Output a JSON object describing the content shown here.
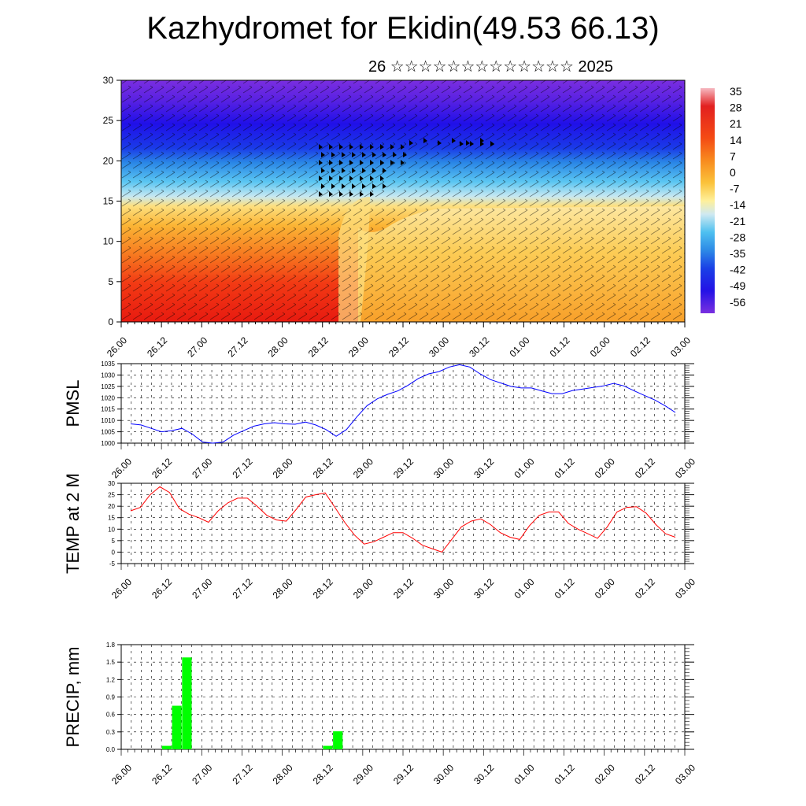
{
  "title": "Kazhydromet for Ekidin(49.53 66.13)",
  "subtitle": "26 ☆☆☆☆☆☆☆☆☆☆☆☆☆ 2025",
  "chart_data": [
    {
      "type": "heatmap",
      "ylim": [
        0,
        30
      ],
      "yticks": [
        "0",
        "5",
        "10",
        "15",
        "20",
        "25",
        "30"
      ],
      "xticks": [
        "26.00",
        "26.12",
        "27.00",
        "27.12",
        "28.00",
        "28.12",
        "29.00",
        "29.12",
        "30.00",
        "30.12",
        "01.00",
        "01.12",
        "02.00",
        "02.12",
        "03.00"
      ],
      "colorbar_labels": [
        "35",
        "28",
        "21",
        "14",
        "7",
        "0",
        "-7",
        "-14",
        "-21",
        "-28",
        "-35",
        "-42",
        "-49",
        "-56"
      ]
    },
    {
      "type": "line",
      "ylabel": "PMSL",
      "ylim": [
        1000,
        1035
      ],
      "yticks": [
        "1000",
        "1005",
        "1010",
        "1015",
        "1020",
        "1025",
        "1030",
        "1035"
      ],
      "xticks": [
        "26.00",
        "26.12",
        "27.00",
        "27.12",
        "28.00",
        "28.12",
        "29.00",
        "29.12",
        "30.00",
        "30.12",
        "01.00",
        "01.12",
        "02.00",
        "02.12",
        "03.00"
      ],
      "color": "#0000ff",
      "values": [
        1008.5,
        1008,
        1006.5,
        1005,
        1005.5,
        1006.5,
        1004,
        1000.5,
        1000,
        1000.5,
        1003.5,
        1005.5,
        1007.5,
        1008.5,
        1009,
        1008.5,
        1008.3,
        1009.3,
        1008,
        1006,
        1003,
        1006,
        1011.5,
        1016.5,
        1019.5,
        1021.5,
        1023,
        1025.5,
        1028.5,
        1030.5,
        1031.5,
        1033.5,
        1034.5,
        1033.5,
        1030.5,
        1028,
        1026.5,
        1025,
        1024.3,
        1024.3,
        1023,
        1021.8,
        1021.8,
        1023.2,
        1023.8,
        1024.5,
        1025.2,
        1026.3,
        1025.2,
        1023,
        1021,
        1019,
        1016.5,
        1013.5
      ]
    },
    {
      "type": "line",
      "ylabel": "TEMP at 2 M",
      "ylim": [
        -5,
        30
      ],
      "yticks": [
        "-5",
        "0",
        "5",
        "10",
        "15",
        "20",
        "25",
        "30"
      ],
      "xticks": [
        "26.00",
        "26.12",
        "27.00",
        "27.12",
        "28.00",
        "28.12",
        "29.00",
        "29.12",
        "30.00",
        "30.12",
        "01.00",
        "01.12",
        "02.00",
        "02.12",
        "03.00"
      ],
      "color": "#ff0000",
      "values": [
        18,
        19.5,
        25,
        28.5,
        26,
        19,
        16.5,
        15,
        13,
        18,
        21.5,
        23.5,
        23.5,
        20,
        16,
        14,
        13.5,
        18.5,
        24,
        25,
        25.8,
        19.5,
        13,
        7.5,
        3.5,
        4.5,
        6.5,
        8.5,
        8.5,
        6,
        3,
        1.5,
        0,
        5.5,
        11,
        13.5,
        14.5,
        12,
        8.5,
        6.5,
        5.5,
        11.5,
        16,
        17.5,
        17.5,
        12.5,
        10,
        8,
        6,
        11,
        17.5,
        19.5,
        19.8,
        17,
        12,
        8,
        6.5
      ]
    },
    {
      "type": "bar",
      "ylabel": "PRECIP, mm",
      "ylim": [
        0,
        1.8
      ],
      "yticks": [
        "0.0",
        "0.3",
        "0.6",
        "0.9",
        "1.2",
        "1.5",
        "1.8"
      ],
      "xticks": [
        "26.00",
        "26.12",
        "27.00",
        "27.12",
        "28.00",
        "28.12",
        "29.00",
        "29.12",
        "30.00",
        "30.12",
        "01.00",
        "01.12",
        "02.00",
        "02.12",
        "03.00"
      ],
      "color": "#00ff00",
      "bars": [
        {
          "x": 4,
          "value": 0.06
        },
        {
          "x": 5,
          "value": 0.75
        },
        {
          "x": 6,
          "value": 1.58
        },
        {
          "x": 20,
          "value": 0.06
        },
        {
          "x": 21,
          "value": 0.31
        }
      ]
    }
  ]
}
